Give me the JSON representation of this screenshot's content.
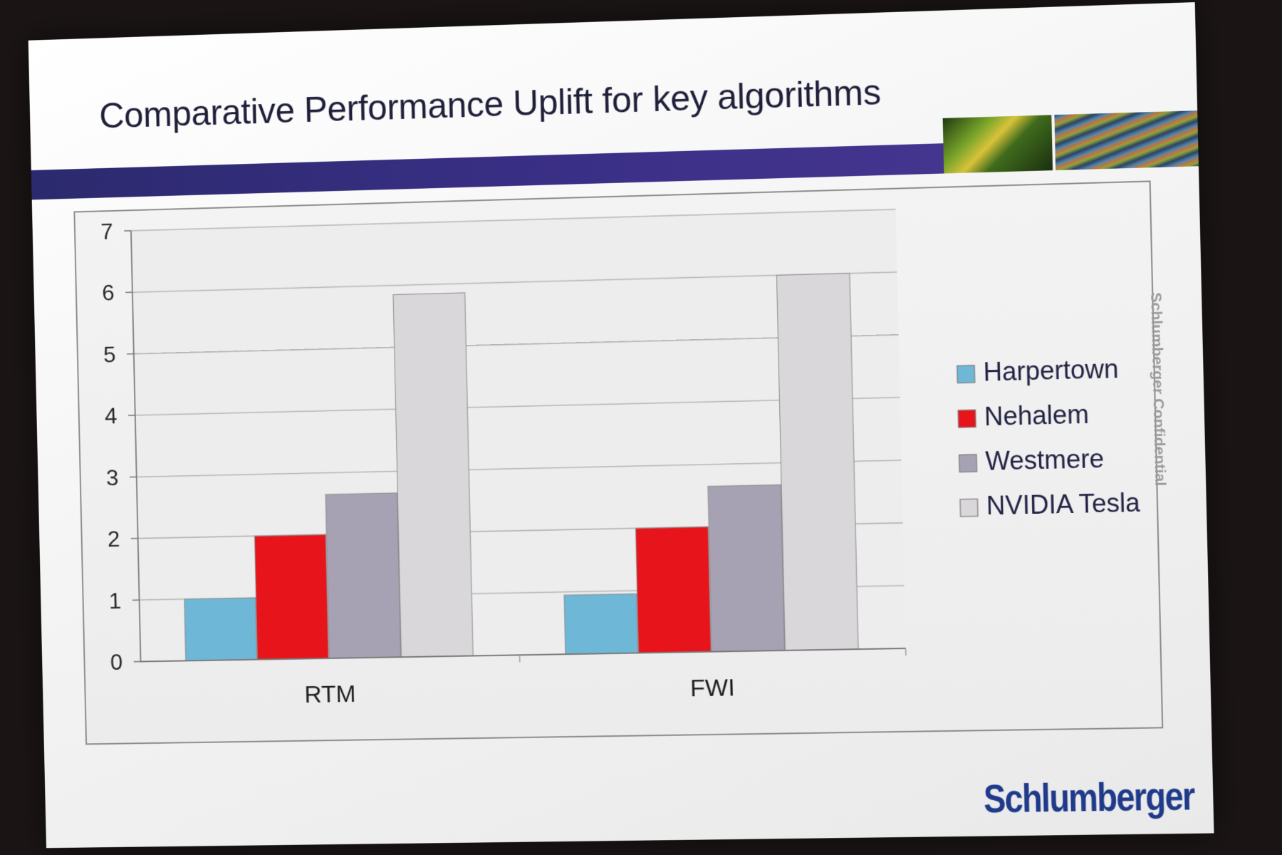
{
  "slide": {
    "title": "Comparative Performance Uplift for key algorithms",
    "confidential_text": "Schlumberger Confidential",
    "brand": "Schlumberger"
  },
  "colors": {
    "title_band": "#2c2a6e",
    "brand": "#1f3a8a",
    "Harpertown": "#6fb7d6",
    "Nehalem": "#e8141b",
    "Westmere": "#a6a2b3",
    "NVIDIA Tesla": "#d9d7da"
  },
  "chart_data": {
    "type": "bar",
    "title": "",
    "xlabel": "",
    "ylabel": "",
    "ylim": [
      0,
      7
    ],
    "yticks": [
      0,
      1,
      2,
      3,
      4,
      5,
      6,
      7
    ],
    "grid": true,
    "legend_position": "right",
    "categories": [
      "RTM",
      "FWI"
    ],
    "series": [
      {
        "name": "Harpertown",
        "values": [
          1.0,
          0.95
        ]
      },
      {
        "name": "Nehalem",
        "values": [
          2.0,
          2.0
        ]
      },
      {
        "name": "Westmere",
        "values": [
          2.65,
          2.65
        ]
      },
      {
        "name": "NVIDIA Tesla",
        "values": [
          5.85,
          6.0
        ]
      }
    ]
  }
}
